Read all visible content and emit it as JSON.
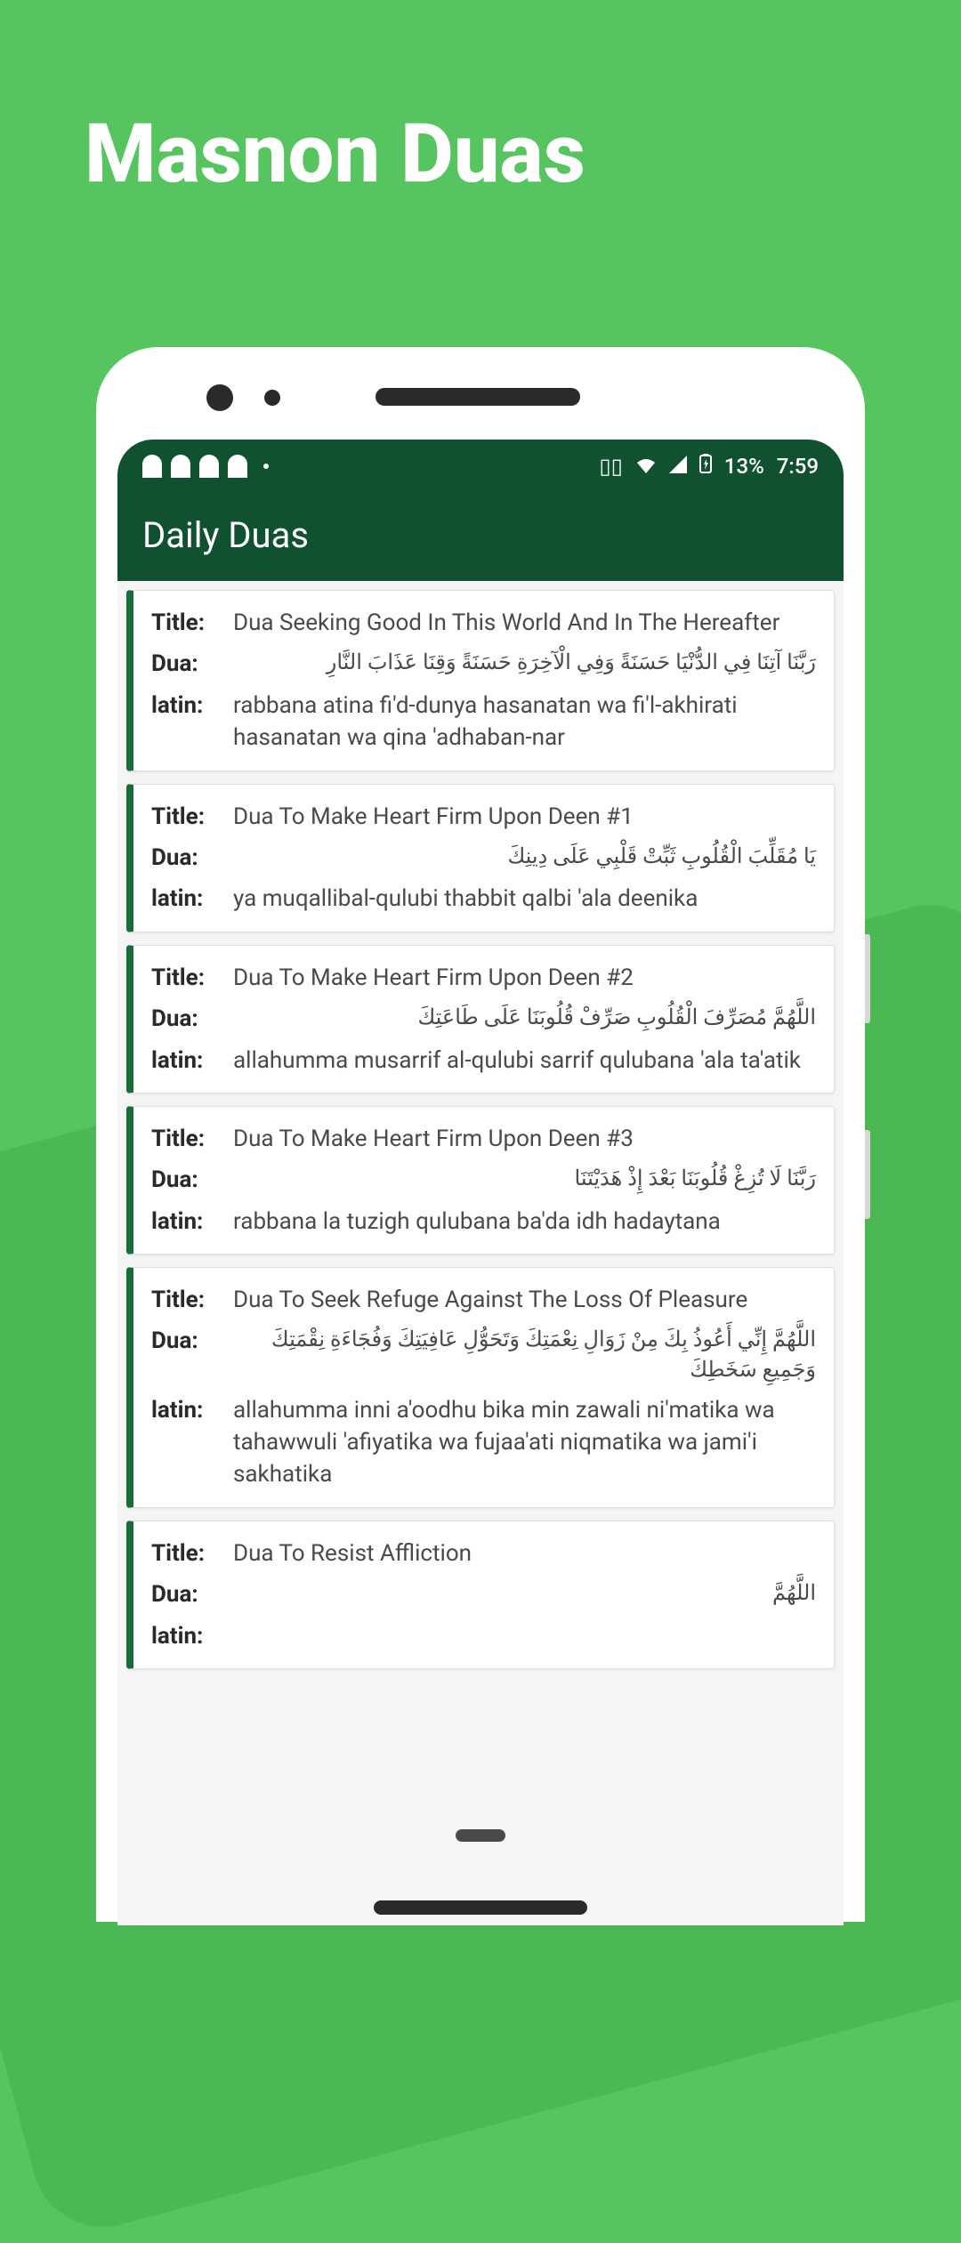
{
  "background_color": "#56c55f",
  "background_shape_color": "#4bb854",
  "page_title": "Masnon Duas",
  "status": {
    "battery": "13%",
    "time": "7:59"
  },
  "header": {
    "title": "Daily Duas",
    "bg_color": "#10512f"
  },
  "labels": {
    "title": "Title:",
    "dua": "Dua:",
    "latin": "latin:"
  },
  "card_accent_color": "#1a6b3a",
  "duas": [
    {
      "title": "Dua Seeking Good In This World And In The Hereafter",
      "dua": "رَبَّنَا آتِنَا فِي الدُّنْيَا حَسَنَةً وَفِي الْآخِرَةِ حَسَنَةً وَقِنَا عَذَابَ النَّارِ",
      "latin": "rabbana atina fi'd-dunya hasanatan wa fi'l-akhirati hasanatan wa qina 'adhaban-nar"
    },
    {
      "title": "Dua To Make Heart Firm Upon Deen #1",
      "dua": "يَا مُقَلِّبَ الْقُلُوبِ ثَبِّتْ قَلْبِي عَلَى دِينِكَ",
      "latin": "ya muqallibal-qulubi thabbit qalbi 'ala deenika"
    },
    {
      "title": "Dua To Make Heart Firm Upon Deen #2",
      "dua": "اللَّهُمَّ مُصَرِّفَ الْقُلُوبِ صَرِّفْ قُلُوبَنَا عَلَى طَاعَتِكَ",
      "latin": "allahumma musarrif al-qulubi sarrif qulubana 'ala ta'atik"
    },
    {
      "title": "Dua To Make Heart Firm Upon Deen #3",
      "dua": "رَبَّنَا لَا تُزِغْ قُلُوبَنَا بَعْدَ إِذْ هَدَيْتَنَا",
      "latin": "rabbana la tuzigh qulubana ba'da idh hadaytana"
    },
    {
      "title": "Dua To Seek Refuge Against The Loss Of Pleasure",
      "dua": "اللَّهُمَّ إِنِّي أَعُوذُ بِكَ مِنْ زَوَالِ نِعْمَتِكَ وَتَحَوُّلِ عَافِيَتِكَ وَفُجَاءَةِ نِقْمَتِكَ وَجَمِيعِ سَخَطِكَ",
      "latin": "allahumma inni a'oodhu bika min zawali ni'matika wa tahawwuli 'afiyatika wa fujaa'ati niqmatika wa jami'i sakhatika"
    },
    {
      "title": "Dua To Resist Affliction",
      "dua": "اللَّهُمَّ",
      "latin": ""
    }
  ]
}
